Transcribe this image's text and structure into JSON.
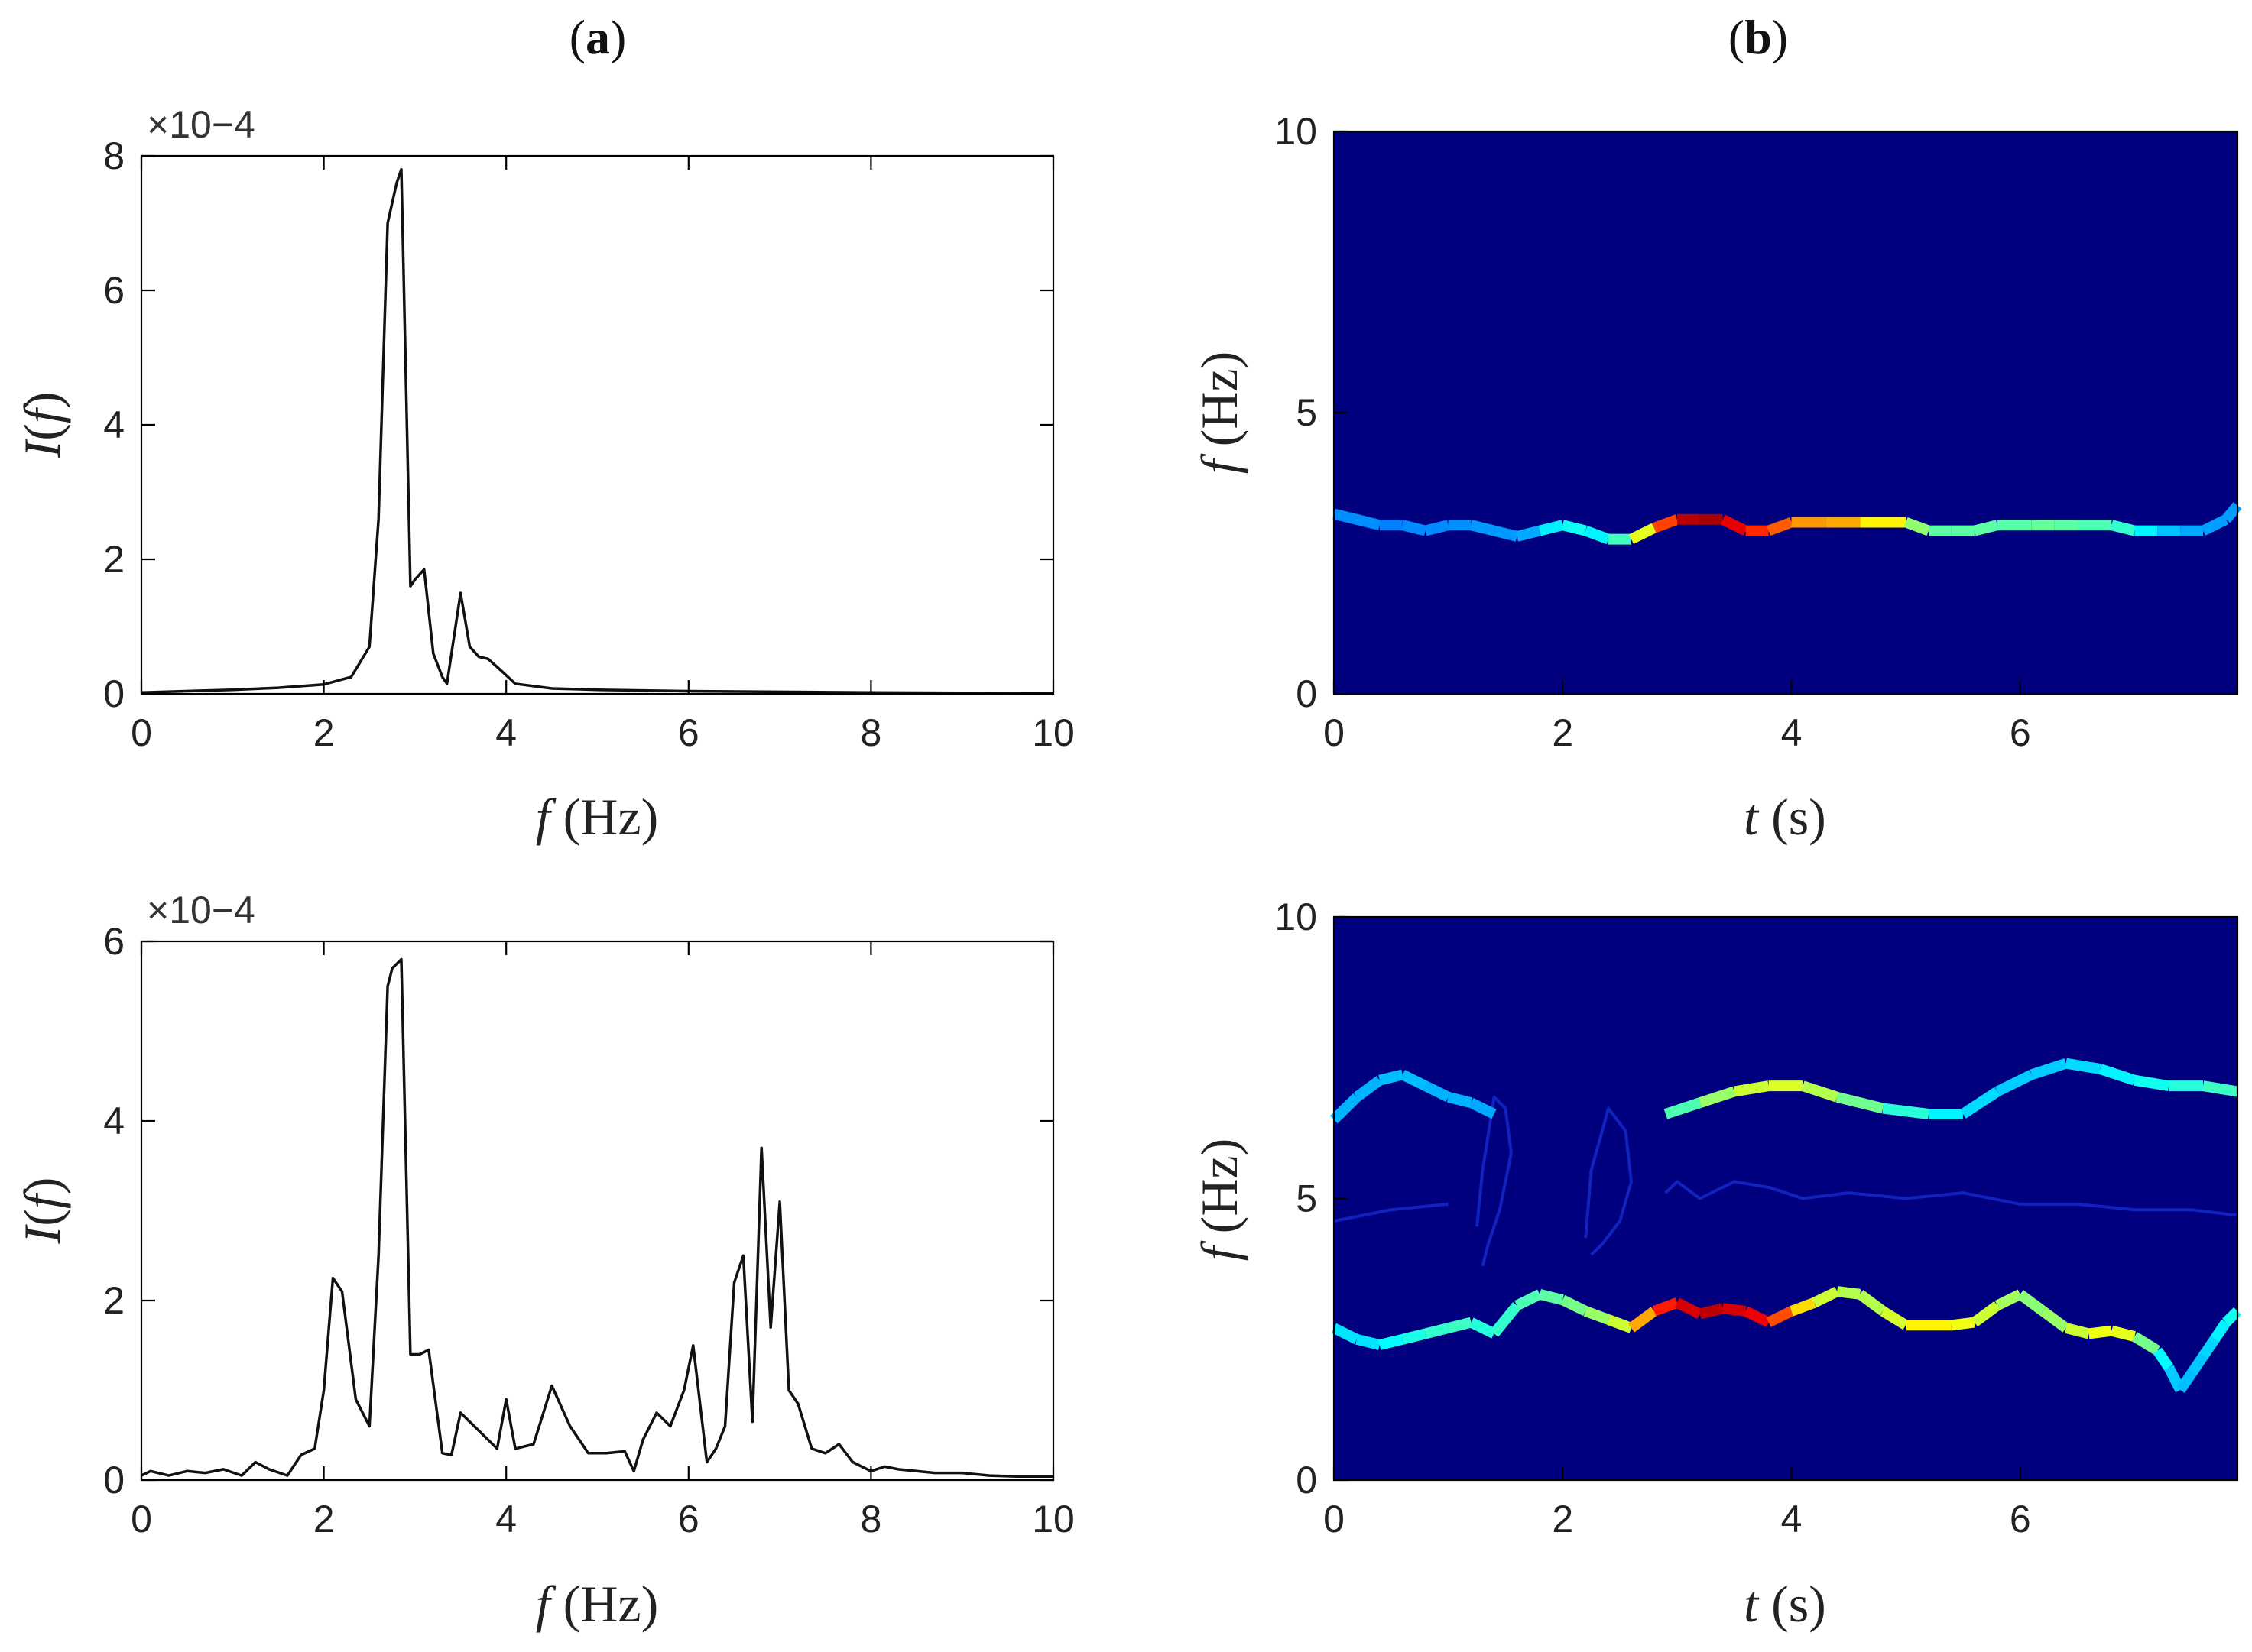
{
  "panel_labels": {
    "a": "a",
    "b": "b"
  },
  "colors": {
    "line": "#111111",
    "tf_background": "#00007f",
    "jet_low": "#0000ff",
    "jet_high": "#7f0000"
  },
  "chart_data": [
    {
      "id": "psd-top",
      "type": "line",
      "panel": "a",
      "xlabel": "f (Hz)",
      "ylabel": "I(f)",
      "exponent_label": "×10−4",
      "xlim": [
        0,
        10
      ],
      "ylim": [
        0,
        8
      ],
      "xticks": [
        0,
        2,
        4,
        6,
        8,
        10
      ],
      "yticks": [
        0,
        2,
        4,
        6,
        8
      ],
      "grid": false,
      "series": [
        {
          "x": [
            0,
            1,
            1.5,
            2.0,
            2.3,
            2.5,
            2.6,
            2.7,
            2.8,
            2.85,
            2.95,
            3.0,
            3.1,
            3.2,
            3.3,
            3.35,
            3.5,
            3.55,
            3.6,
            3.7,
            3.8,
            3.9,
            4.1,
            4.5,
            5,
            6,
            7,
            8,
            9,
            10
          ],
          "y": [
            0.02,
            0.06,
            0.09,
            0.14,
            0.25,
            0.7,
            2.6,
            7.0,
            7.6,
            7.8,
            1.6,
            1.7,
            1.85,
            0.6,
            0.25,
            0.15,
            1.5,
            1.1,
            0.7,
            0.55,
            0.52,
            0.4,
            0.15,
            0.08,
            0.06,
            0.04,
            0.03,
            0.02,
            0.015,
            0.01
          ]
        }
      ]
    },
    {
      "id": "psd-bottom",
      "type": "line",
      "panel": "a",
      "xlabel": "f (Hz)",
      "ylabel": "I(f)",
      "exponent_label": "×10−4",
      "xlim": [
        0,
        10
      ],
      "ylim": [
        0,
        6
      ],
      "xticks": [
        0,
        2,
        4,
        6,
        8,
        10
      ],
      "yticks": [
        0,
        2,
        4,
        6
      ],
      "grid": false,
      "series": [
        {
          "x": [
            0,
            0.1,
            0.3,
            0.5,
            0.7,
            0.9,
            1.1,
            1.25,
            1.4,
            1.6,
            1.75,
            1.9,
            2.0,
            2.1,
            2.2,
            2.35,
            2.5,
            2.6,
            2.7,
            2.75,
            2.85,
            2.95,
            3.05,
            3.15,
            3.3,
            3.4,
            3.5,
            3.7,
            3.9,
            4.0,
            4.1,
            4.3,
            4.5,
            4.7,
            4.9,
            5.1,
            5.3,
            5.4,
            5.5,
            5.65,
            5.8,
            5.95,
            6.05,
            6.2,
            6.3,
            6.4,
            6.5,
            6.6,
            6.7,
            6.8,
            6.9,
            7.0,
            7.1,
            7.2,
            7.35,
            7.5,
            7.65,
            7.8,
            8.0,
            8.15,
            8.3,
            8.5,
            8.7,
            9.0,
            9.3,
            9.6,
            10
          ],
          "y": [
            0.05,
            0.1,
            0.05,
            0.1,
            0.08,
            0.12,
            0.05,
            0.2,
            0.12,
            0.05,
            0.28,
            0.35,
            1.0,
            2.25,
            2.1,
            0.9,
            0.6,
            2.5,
            5.5,
            5.7,
            5.8,
            1.4,
            1.4,
            1.45,
            0.3,
            0.28,
            0.75,
            0.55,
            0.35,
            0.9,
            0.35,
            0.4,
            1.05,
            0.6,
            0.3,
            0.3,
            0.32,
            0.1,
            0.45,
            0.75,
            0.6,
            1.0,
            1.5,
            0.2,
            0.35,
            0.6,
            2.2,
            2.5,
            0.65,
            3.7,
            1.7,
            3.1,
            1.0,
            0.85,
            0.35,
            0.3,
            0.4,
            0.2,
            0.1,
            0.15,
            0.12,
            0.1,
            0.08,
            0.08,
            0.05,
            0.04,
            0.04
          ]
        }
      ]
    },
    {
      "id": "tf-top",
      "type": "heatmap",
      "panel": "b",
      "xlabel": "t (s)",
      "ylabel": "f (Hz)",
      "xlim": [
        0,
        7.9
      ],
      "ylim": [
        0,
        10
      ],
      "xticks": [
        0,
        2,
        4,
        6
      ],
      "yticks": [
        0,
        5,
        10
      ],
      "colormap": "jet",
      "ridges": [
        {
          "t": [
            0,
            0.4,
            0.6,
            0.8,
            1.0,
            1.2,
            1.4,
            1.6,
            1.8,
            2.0,
            2.2,
            2.4,
            2.6,
            2.8,
            3.0,
            3.2,
            3.4,
            3.6,
            3.8,
            4.0,
            4.3,
            4.6,
            5.0,
            5.2,
            5.4,
            5.6,
            5.8,
            6.1,
            6.3,
            6.5,
            6.8,
            7.0,
            7.2,
            7.4,
            7.6,
            7.8,
            7.9
          ],
          "f": [
            3.2,
            3.0,
            3.0,
            2.9,
            3.0,
            3.0,
            2.9,
            2.8,
            2.9,
            3.0,
            2.9,
            2.75,
            2.75,
            2.95,
            3.1,
            3.1,
            3.1,
            2.9,
            2.9,
            3.05,
            3.05,
            3.05,
            3.05,
            2.9,
            2.9,
            2.9,
            3.0,
            3.0,
            3.0,
            3.0,
            3.0,
            2.9,
            2.9,
            2.9,
            2.9,
            3.1,
            3.35
          ],
          "power": [
            0.28,
            0.25,
            0.25,
            0.27,
            0.25,
            0.28,
            0.27,
            0.28,
            0.3,
            0.42,
            0.35,
            0.38,
            0.5,
            0.7,
            0.92,
            0.97,
            0.95,
            0.85,
            0.82,
            0.75,
            0.7,
            0.72,
            0.55,
            0.48,
            0.45,
            0.48,
            0.45,
            0.47,
            0.48,
            0.45,
            0.45,
            0.4,
            0.33,
            0.3,
            0.28,
            0.28,
            0.28
          ]
        }
      ],
      "faint_curves": []
    },
    {
      "id": "tf-bottom",
      "type": "heatmap",
      "panel": "b",
      "xlabel": "t (s)",
      "ylabel": "f (Hz)",
      "xlim": [
        0,
        7.9
      ],
      "ylim": [
        0,
        10
      ],
      "xticks": [
        0,
        2,
        4,
        6
      ],
      "yticks": [
        0,
        5,
        10
      ],
      "colormap": "jet",
      "ridges": [
        {
          "t": [
            0,
            0.2,
            0.4,
            0.6,
            0.8,
            1.0,
            1.2,
            1.4,
            1.6,
            1.8,
            2.0,
            2.2,
            2.4,
            2.6,
            2.8,
            3.0,
            3.2,
            3.4,
            3.6,
            3.8,
            4.0,
            4.2,
            4.4,
            4.6,
            4.8,
            5.0,
            5.2,
            5.4,
            5.6,
            5.8,
            6.0,
            6.2,
            6.4,
            6.6,
            6.8,
            7.0,
            7.2,
            7.3,
            7.4,
            7.5,
            7.6,
            7.7,
            7.8,
            7.9
          ],
          "f": [
            2.7,
            2.5,
            2.4,
            2.5,
            2.6,
            2.7,
            2.8,
            2.6,
            3.1,
            3.3,
            3.2,
            3.0,
            2.85,
            2.7,
            3.0,
            3.15,
            2.95,
            3.05,
            3.0,
            2.8,
            3.0,
            3.15,
            3.35,
            3.3,
            3.0,
            2.75,
            2.75,
            2.75,
            2.8,
            3.1,
            3.3,
            3.0,
            2.7,
            2.6,
            2.65,
            2.55,
            2.3,
            2.0,
            1.6,
            1.9,
            2.2,
            2.5,
            2.8,
            3.0
          ],
          "power": [
            0.35,
            0.35,
            0.35,
            0.4,
            0.4,
            0.45,
            0.42,
            0.4,
            0.45,
            0.45,
            0.48,
            0.5,
            0.55,
            0.6,
            0.82,
            0.88,
            0.95,
            0.93,
            0.9,
            0.88,
            0.72,
            0.6,
            0.55,
            0.55,
            0.55,
            0.62,
            0.65,
            0.62,
            0.6,
            0.55,
            0.52,
            0.5,
            0.55,
            0.6,
            0.62,
            0.58,
            0.4,
            0.35,
            0.3,
            0.32,
            0.32,
            0.35,
            0.38,
            0.4
          ]
        },
        {
          "t": [
            0,
            0.2,
            0.4,
            0.6,
            0.8,
            1.0,
            1.2,
            1.4
          ],
          "f": [
            6.4,
            6.8,
            7.1,
            7.2,
            7.0,
            6.8,
            6.7,
            6.5
          ],
          "power": [
            0.3,
            0.3,
            0.3,
            0.32,
            0.3,
            0.3,
            0.3,
            0.28
          ]
        },
        {
          "t": [
            2.9,
            3.2,
            3.5,
            3.8,
            4.1,
            4.4,
            4.8,
            5.2,
            5.5,
            5.8,
            6.1,
            6.4,
            6.7,
            7.0,
            7.3,
            7.6,
            7.9
          ],
          "f": [
            6.5,
            6.7,
            6.9,
            7.0,
            7.0,
            6.8,
            6.6,
            6.5,
            6.5,
            6.9,
            7.2,
            7.4,
            7.3,
            7.1,
            7.0,
            7.0,
            6.9
          ],
          "power": [
            0.4,
            0.5,
            0.55,
            0.6,
            0.58,
            0.52,
            0.45,
            0.38,
            0.35,
            0.33,
            0.32,
            0.33,
            0.35,
            0.38,
            0.4,
            0.42,
            0.45
          ]
        }
      ],
      "faint_curves": [
        {
          "t": [
            1.25,
            1.3,
            1.4,
            1.5,
            1.55,
            1.45,
            1.35,
            1.3
          ],
          "f": [
            4.5,
            5.5,
            6.8,
            6.6,
            5.8,
            4.8,
            4.2,
            3.8
          ]
        },
        {
          "t": [
            2.2,
            2.25,
            2.4,
            2.55,
            2.6,
            2.5,
            2.35,
            2.25
          ],
          "f": [
            4.3,
            5.5,
            6.6,
            6.2,
            5.3,
            4.6,
            4.2,
            4.0
          ]
        },
        {
          "t": [
            2.9,
            3.0,
            3.2,
            3.5,
            3.8,
            4.1,
            4.5,
            5.0,
            5.5,
            6.0,
            6.5,
            7.0,
            7.5,
            7.9
          ],
          "f": [
            5.1,
            5.3,
            5.0,
            5.3,
            5.2,
            5.0,
            5.1,
            5.0,
            5.1,
            4.9,
            4.9,
            4.8,
            4.8,
            4.7
          ]
        },
        {
          "t": [
            0,
            0.5,
            1.0
          ],
          "f": [
            4.6,
            4.8,
            4.9
          ]
        }
      ]
    }
  ]
}
